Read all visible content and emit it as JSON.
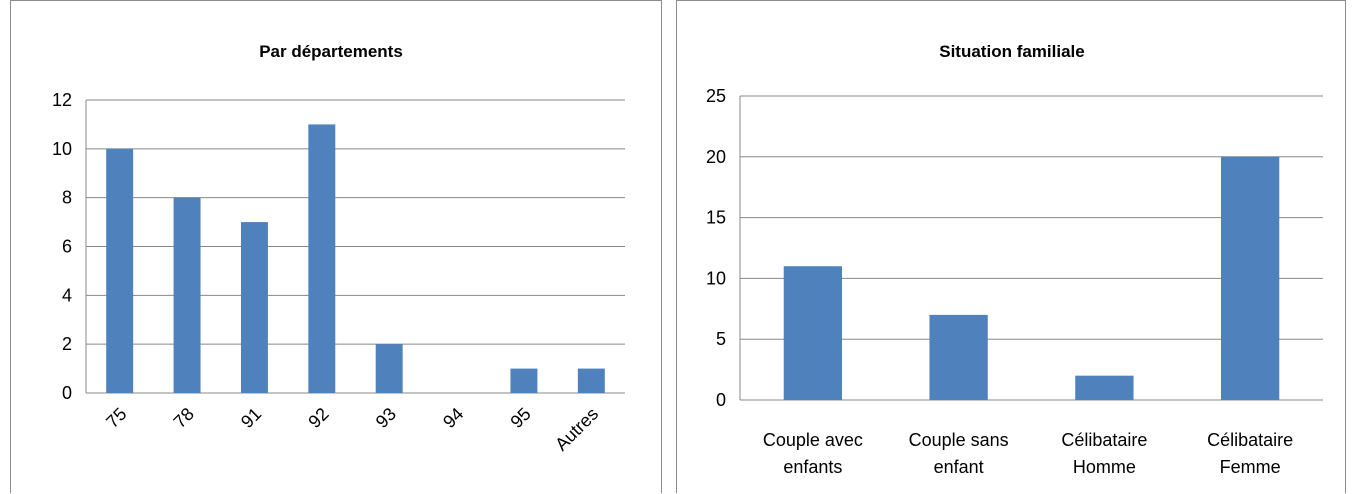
{
  "chart_data": [
    {
      "type": "bar",
      "title": "Par départements",
      "categories": [
        "75",
        "78",
        "91",
        "92",
        "93",
        "94",
        "95",
        "Autres"
      ],
      "values": [
        10,
        8,
        7,
        11,
        2,
        0,
        1,
        1
      ],
      "ylim": [
        0,
        12
      ],
      "yticks": [
        0,
        2,
        4,
        6,
        8,
        10,
        12
      ],
      "xlabel": "",
      "ylabel": "",
      "grid": true,
      "xtick_rotation": "diagonal",
      "color": "#4f81bd"
    },
    {
      "type": "bar",
      "title": "Situation familiale",
      "categories": [
        "Couple avec enfants",
        "Couple sans enfant",
        "Célibataire Homme",
        "Célibataire Femme"
      ],
      "category_lines": [
        [
          "Couple avec",
          "enfants"
        ],
        [
          "Couple sans",
          "enfant"
        ],
        [
          "Célibataire",
          "Homme"
        ],
        [
          "Célibataire",
          "Femme"
        ]
      ],
      "values": [
        11,
        7,
        2,
        20
      ],
      "ylim": [
        0,
        25
      ],
      "yticks": [
        0,
        5,
        10,
        15,
        20,
        25
      ],
      "xlabel": "",
      "ylabel": "",
      "grid": true,
      "color": "#4f81bd"
    }
  ]
}
